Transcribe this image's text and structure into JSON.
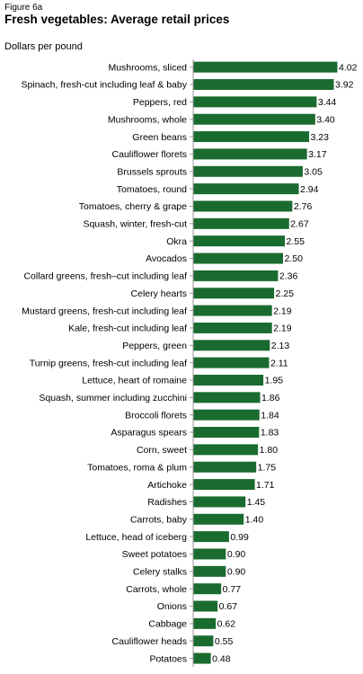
{
  "figure_label": "Figure 6a",
  "title": "Fresh vegetables: Average retail prices",
  "unit_label": "Dollars per pound",
  "colors": {
    "bar": "#1a6b2f",
    "axis": "#999999"
  },
  "chart_data": {
    "type": "bar",
    "orientation": "horizontal",
    "title": "Fresh vegetables: Average retail prices",
    "xlabel": "",
    "ylabel": "Dollars per pound",
    "xlim": [
      0,
      4.02
    ],
    "grid": false,
    "legend": "none",
    "categories": [
      "Mushrooms, sliced",
      "Spinach, fresh-cut including leaf & baby",
      "Peppers, red",
      "Mushrooms, whole",
      "Green beans",
      "Cauliflower florets",
      "Brussels sprouts",
      "Tomatoes, round",
      "Tomatoes, cherry & grape",
      "Squash, winter, fresh-cut",
      "Okra",
      "Avocados",
      "Collard greens, fresh–cut including leaf",
      "Celery hearts",
      "Mustard greens, fresh-cut including leaf",
      "Kale, fresh-cut including leaf",
      "Peppers, green",
      "Turnip greens, fresh-cut including leaf",
      "Lettuce, heart of romaine",
      "Squash, summer including zucchini",
      "Broccoli florets",
      "Asparagus spears",
      "Corn, sweet",
      "Tomatoes, roma & plum",
      "Artichoke",
      "Radishes",
      "Carrots, baby",
      "Lettuce, head of iceberg",
      "Sweet potatoes",
      "Celery stalks",
      "Carrots, whole",
      "Onions",
      "Cabbage",
      "Cauliflower heads",
      "Potatoes"
    ],
    "values": [
      4.02,
      3.92,
      3.44,
      3.4,
      3.23,
      3.17,
      3.05,
      2.94,
      2.76,
      2.67,
      2.55,
      2.5,
      2.36,
      2.25,
      2.19,
      2.19,
      2.13,
      2.11,
      1.95,
      1.86,
      1.84,
      1.83,
      1.8,
      1.75,
      1.71,
      1.45,
      1.4,
      0.99,
      0.9,
      0.9,
      0.77,
      0.67,
      0.62,
      0.55,
      0.48
    ],
    "value_labels": [
      "4.02",
      "3.92",
      "3.44",
      "3.40",
      "3.23",
      "3.17",
      "3.05",
      "2.94",
      "2.76",
      "2.67",
      "2.55",
      "2.50",
      "2.36",
      "2.25",
      "2.19",
      "2.19",
      "2.13",
      "2.11",
      "1.95",
      "1.86",
      "1.84",
      "1.83",
      "1.80",
      "1.75",
      "1.71",
      "1.45",
      "1.40",
      "0.99",
      "0.90",
      "0.90",
      "0.77",
      "0.67",
      "0.62",
      "0.55",
      "0.48"
    ]
  }
}
